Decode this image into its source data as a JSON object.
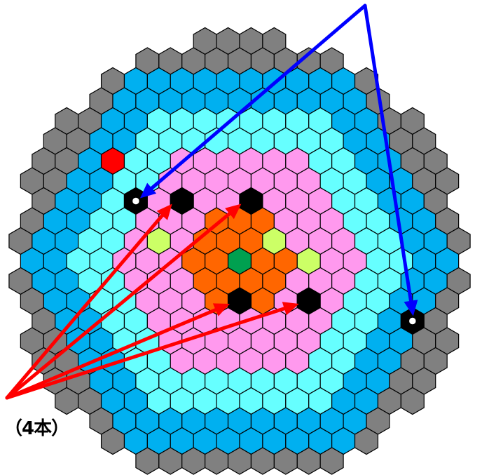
{
  "diagram": {
    "count_label": "（4本）",
    "legend_colors": {
      "outer_reflector": "#808080",
      "outer_fuel": "#00b0f0",
      "middle_fuel": "#66ffff",
      "inner_fuel": "#ff99ee",
      "center_region": "#ff6600",
      "special_yellow": "#ccff66",
      "center_green": "#00a050",
      "special_red": "#ff0000",
      "control_rod": "#000000",
      "blue_arrow": "#0000ff",
      "red_arrow": "#ff0000"
    }
  }
}
